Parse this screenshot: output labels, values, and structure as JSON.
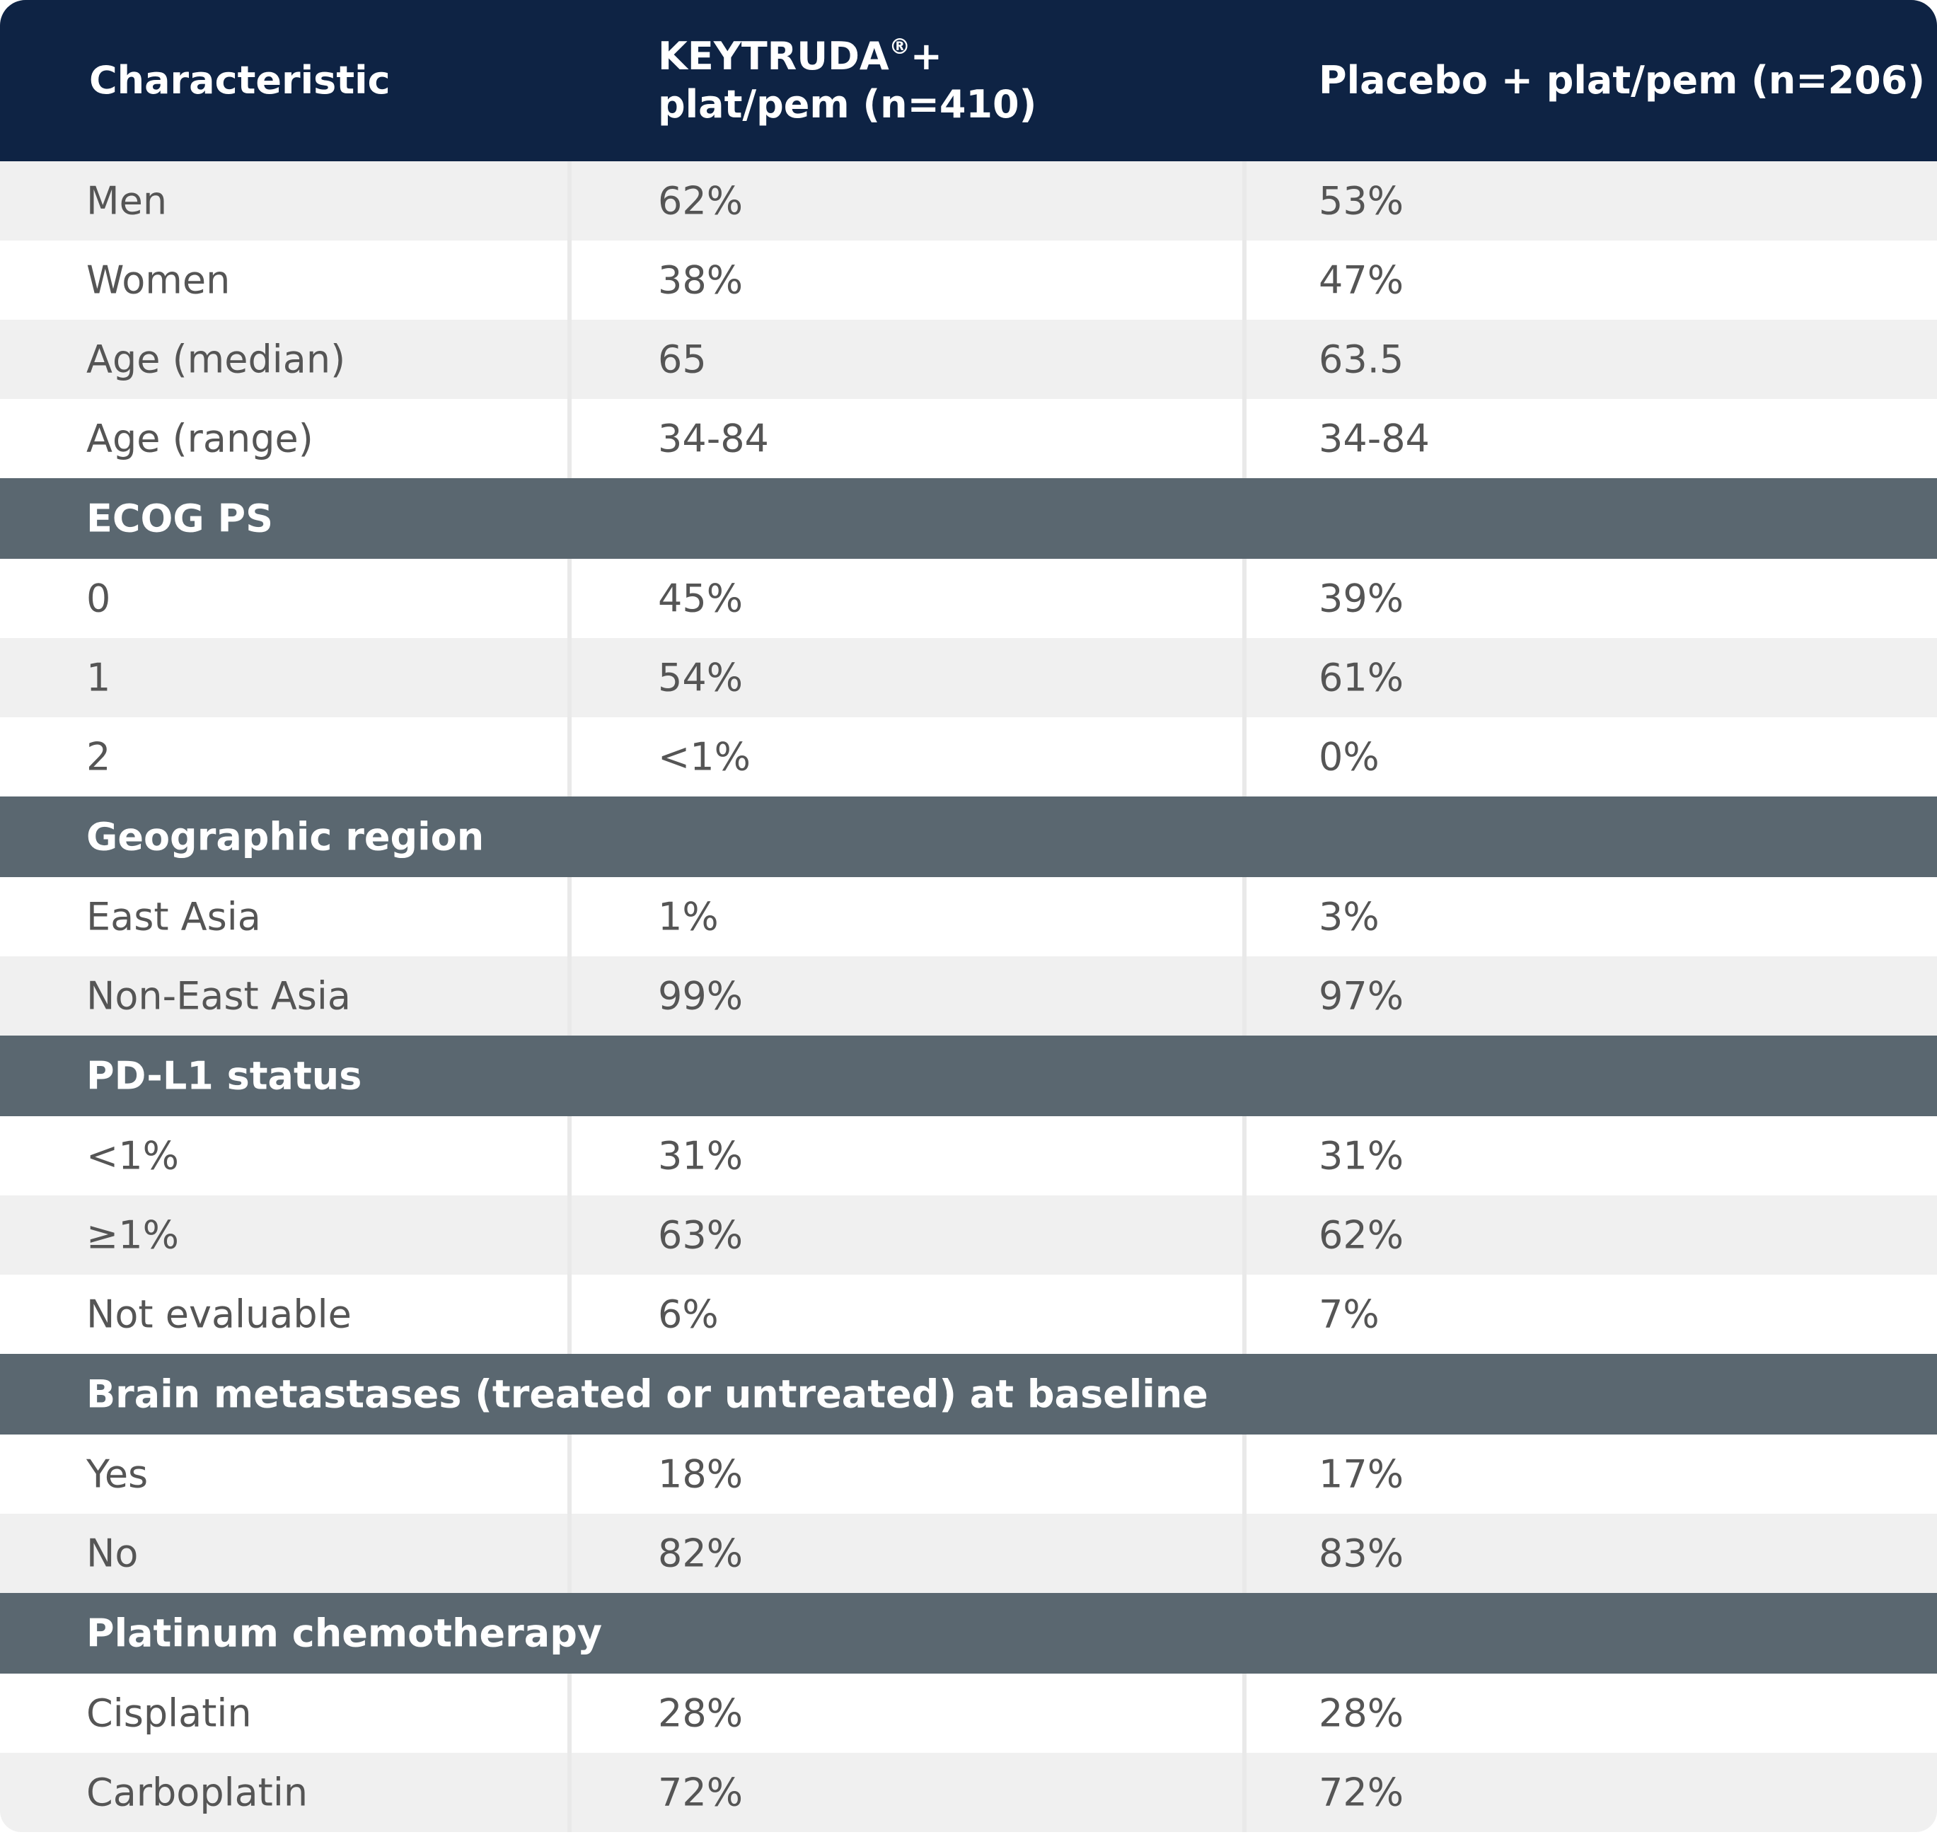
{
  "header": {
    "characteristic": "Characteristic",
    "keytruda_line1": "KEYTRUDA",
    "keytruda_reg": "®",
    "keytruda_plus": "+",
    "keytruda_line2": "plat/pem (n=410)",
    "placebo": "Placebo + plat/pem (n=206)"
  },
  "rows": {
    "men": [
      "Men",
      "62%",
      "53%"
    ],
    "women": [
      "Women",
      "38%",
      "47%"
    ],
    "age_median": [
      "Age (median)",
      "65",
      "63.5"
    ],
    "age_range": [
      "Age (range)",
      "34-84",
      "34-84"
    ],
    "ecog_0": [
      "0",
      "45%",
      "39%"
    ],
    "ecog_1": [
      "1",
      "54%",
      "61%"
    ],
    "ecog_2": [
      "2",
      "<1%",
      "0%"
    ],
    "east_asia": [
      "East Asia",
      "1%",
      "3%"
    ],
    "non_east_asia": [
      "Non-East Asia",
      "99%",
      "97%"
    ],
    "pdl1_lt1": [
      "<1%",
      "31%",
      "31%"
    ],
    "pdl1_ge1": [
      "≥1%",
      "63%",
      "62%"
    ],
    "pdl1_ne": [
      "Not evaluable",
      "6%",
      "7%"
    ],
    "brain_yes": [
      "Yes",
      "18%",
      "17%"
    ],
    "brain_no": [
      "No",
      "82%",
      "83%"
    ],
    "cisplatin": [
      "Cisplatin",
      "28%",
      "28%"
    ],
    "carboplatin": [
      "Carboplatin",
      "72%",
      "72%"
    ]
  },
  "sections": {
    "ecog": "ECOG PS",
    "region": "Geographic region",
    "pdl1": "PD-L1 status",
    "brain": "Brain metastases (treated or untreated) at baseline",
    "platinum": "Platinum chemotherapy"
  }
}
